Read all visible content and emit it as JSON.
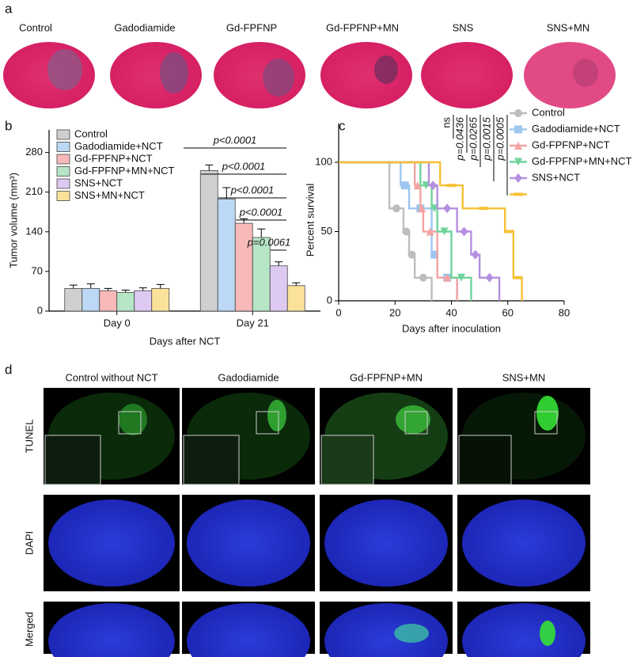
{
  "panels": {
    "a": {
      "label": "a",
      "titles": [
        "Control",
        "Gadodiamide",
        "Gd-FPFNP",
        "Gd-FPFNP+MN",
        "SNS",
        "SNS+MN"
      ]
    },
    "d": {
      "label": "d",
      "titles": [
        "Control without NCT",
        "Gadodiamide",
        "Gd-FPFNP+MN",
        "SNS+MN"
      ],
      "rows": [
        "TUNEL",
        "DAPI",
        "Merged"
      ]
    }
  },
  "chart_data": [
    {
      "type": "bar",
      "label": "b",
      "xlabel": "Days after NCT",
      "ylabel": "Tumor volume (mm³)",
      "categories": [
        "Day 0",
        "Day 21"
      ],
      "series": [
        {
          "name": "Control",
          "color": "#cfcfcf",
          "values": [
            40,
            248
          ],
          "errors": [
            6,
            10
          ]
        },
        {
          "name": "Gadodiamide+NCT",
          "color": "#bcd8f4",
          "values": [
            40,
            198
          ],
          "errors": [
            8,
            20
          ]
        },
        {
          "name": "Gd-FPFNP+NCT",
          "color": "#f7b9b9",
          "values": [
            36,
            155
          ],
          "errors": [
            4,
            8
          ]
        },
        {
          "name": "Gd-FPFNP+MN+NCT",
          "color": "#b6e6c6",
          "values": [
            33,
            130
          ],
          "errors": [
            4,
            15
          ]
        },
        {
          "name": "SNS+NCT",
          "color": "#ddc9f1",
          "values": [
            36,
            80
          ],
          "errors": [
            5,
            7
          ]
        },
        {
          "name": "SNS+MN+NCT",
          "color": "#fbe29b",
          "values": [
            40,
            45
          ],
          "errors": [
            7,
            5
          ]
        }
      ],
      "ylim": [
        0,
        320
      ],
      "yticks": [
        0,
        70,
        140,
        210,
        280
      ],
      "annotations": [
        "p<0.0001",
        "p<0.0001",
        "p<0.0001",
        "p<0.0001",
        "p=0.0061"
      ]
    },
    {
      "type": "line",
      "label": "c",
      "xlabel": "Days after inoculation",
      "ylabel": "Percent survival",
      "series": [
        {
          "name": "Control",
          "color": "#bdbdbd",
          "marker": "circle",
          "x": [
            0,
            18,
            18,
            23,
            23,
            25,
            25,
            27,
            27,
            33,
            33
          ],
          "values": [
            100,
            100,
            66.7,
            66.7,
            50,
            50,
            33.3,
            33.3,
            16.7,
            16.7,
            0
          ]
        },
        {
          "name": "Gadodiamide+NCT",
          "color": "#9fc6f0",
          "marker": "square",
          "x": [
            0,
            22,
            22,
            25,
            25,
            33,
            33,
            35,
            35,
            42,
            42
          ],
          "values": [
            100,
            100,
            83.3,
            83.3,
            66.7,
            66.7,
            33.3,
            33.3,
            16.7,
            16.7,
            0
          ]
        },
        {
          "name": "Gd-FPFNP+NCT",
          "color": "#f4a3a3",
          "marker": "triangle",
          "x": [
            0,
            27,
            27,
            29,
            29,
            30,
            30,
            35,
            35,
            42,
            42
          ],
          "values": [
            100,
            100,
            83.3,
            83.3,
            66.7,
            66.7,
            50,
            50,
            16.7,
            16.7,
            0
          ]
        },
        {
          "name": "Gd-FPFNP+MN+NCT",
          "color": "#6fd39b",
          "marker": "down",
          "x": [
            0,
            29,
            29,
            33,
            33,
            35,
            35,
            40,
            40,
            47,
            47
          ],
          "values": [
            100,
            100,
            83.3,
            83.3,
            66.7,
            66.7,
            50,
            50,
            16.7,
            16.7,
            0
          ]
        },
        {
          "name": "SNS+NCT",
          "color": "#b48fe0",
          "marker": "diamond",
          "x": [
            0,
            32,
            32,
            35,
            35,
            42,
            42,
            47,
            47,
            50,
            50,
            57,
            57
          ],
          "values": [
            100,
            100,
            83.3,
            83.3,
            66.7,
            66.7,
            50,
            50,
            33.3,
            33.3,
            16.7,
            16.7,
            0
          ]
        },
        {
          "name": null,
          "color": "#f6c035",
          "marker": "dash",
          "x": [
            0,
            36,
            36,
            44,
            44,
            59,
            59,
            62,
            62,
            65,
            65
          ],
          "values": [
            100,
            100,
            83.3,
            83.3,
            66.7,
            66.7,
            50,
            50,
            16.7,
            16.7,
            0
          ]
        }
      ],
      "xlim": [
        0,
        80
      ],
      "xticks": [
        0,
        20,
        40,
        60,
        80
      ],
      "ylim": [
        0,
        128
      ],
      "yticks": [
        0,
        50,
        100
      ],
      "annotations": [
        "ns",
        "p=0.0436",
        "p=0.0265",
        "p=0.0015",
        "p=0.0005"
      ]
    }
  ]
}
